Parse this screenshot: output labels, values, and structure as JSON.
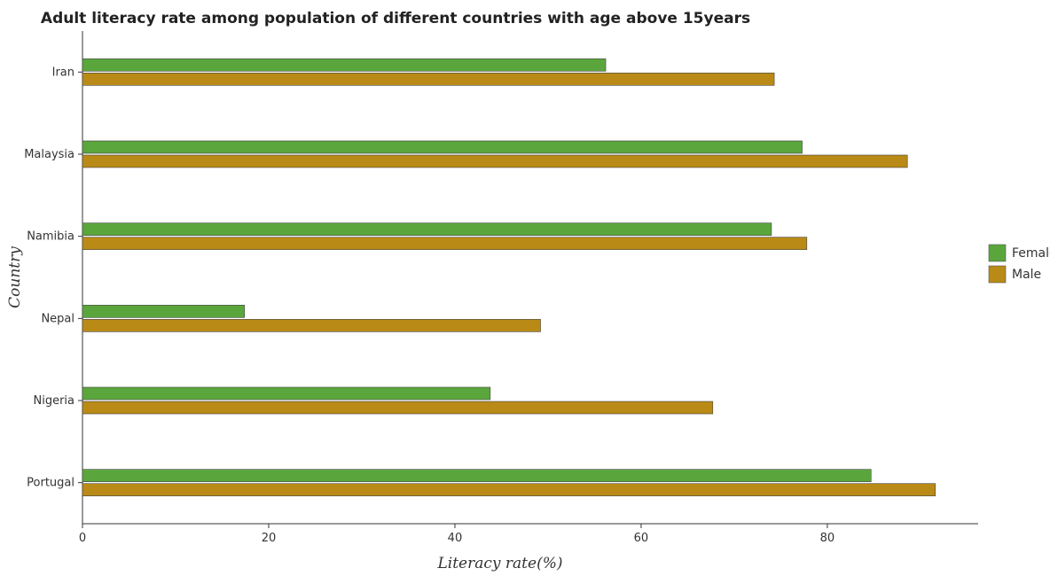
{
  "chart_data": {
    "type": "bar",
    "orientation": "horizontal",
    "title": "Adult literacy rate among population of different countries with age above 15years",
    "xlabel": "Literacy rate(%)",
    "ylabel": "Country",
    "categories": [
      "Iran",
      "Malaysia",
      "Namibia",
      "Nepal",
      "Nigeria",
      "Portugal"
    ],
    "series": [
      {
        "name": "Female",
        "color": "#5aa63c",
        "values": [
          56.2,
          77.3,
          74.0,
          17.4,
          43.8,
          84.7
        ]
      },
      {
        "name": "Male",
        "color": "#b98a16",
        "values": [
          74.3,
          88.6,
          77.8,
          49.2,
          67.7,
          91.6
        ]
      }
    ],
    "xlim": [
      0,
      96.2
    ],
    "xticks": [
      "0",
      "20",
      "40",
      "60",
      "80"
    ],
    "grid": false,
    "legend_position": "right"
  }
}
